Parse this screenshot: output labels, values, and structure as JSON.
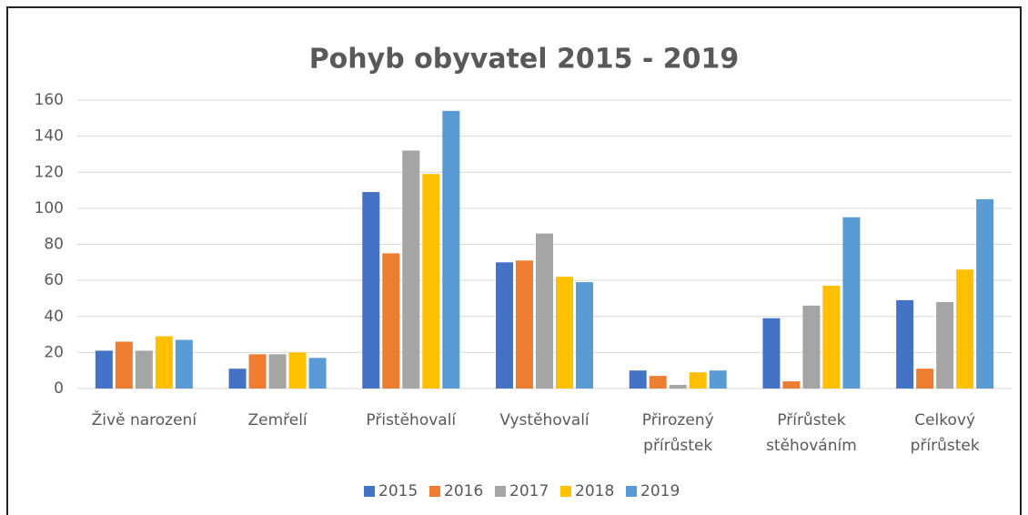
{
  "chart_data": {
    "type": "bar",
    "title": "Pohyb obyvatel 2015 - 2019",
    "categories": [
      "Živě narození",
      "Zemřelí",
      "Přistěhovalí",
      "Vystěhovalí",
      "Přirozený\npřírůstek",
      "Přírůstek\nstěhováním",
      "Celkový\npřírůstek"
    ],
    "series": [
      {
        "name": "2015",
        "color": "#4472c4",
        "values": [
          21,
          11,
          109,
          70,
          10,
          39,
          49
        ]
      },
      {
        "name": "2016",
        "color": "#ed7d31",
        "values": [
          26,
          19,
          75,
          71,
          7,
          4,
          11
        ]
      },
      {
        "name": "2017",
        "color": "#a5a5a5",
        "values": [
          21,
          19,
          132,
          86,
          2,
          46,
          48
        ]
      },
      {
        "name": "2018",
        "color": "#ffc000",
        "values": [
          29,
          20,
          119,
          62,
          9,
          57,
          66
        ]
      },
      {
        "name": "2019",
        "color": "#5b9bd5",
        "values": [
          27,
          17,
          154,
          59,
          10,
          95,
          105
        ]
      }
    ],
    "ylim": [
      0,
      160
    ],
    "yticks": [
      0,
      20,
      40,
      60,
      80,
      100,
      120,
      140,
      160
    ],
    "grid": true,
    "legend": "bottom"
  }
}
